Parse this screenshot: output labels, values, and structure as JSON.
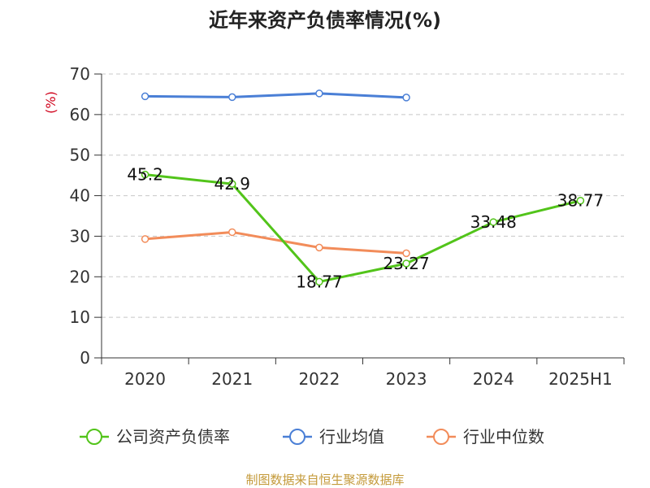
{
  "chart_data": {
    "type": "line",
    "title": "近年来资产负债率情况(%)",
    "ylabel": "(%)",
    "xlabel": "",
    "ylim": [
      0,
      70
    ],
    "yticks": [
      0,
      10,
      20,
      30,
      40,
      50,
      60,
      70
    ],
    "categories": [
      "2020",
      "2021",
      "2022",
      "2023",
      "2024",
      "2025H1"
    ],
    "grid": true,
    "legend_position": "bottom",
    "series": [
      {
        "name": "公司资产负债率",
        "color": "#52c41a",
        "values": [
          45.2,
          42.9,
          18.77,
          23.27,
          33.48,
          38.77
        ],
        "labels": [
          "45.2",
          "42.9",
          "18.77",
          "23.27",
          "33.48",
          "38.77"
        ]
      },
      {
        "name": "行业均值",
        "color": "#4a7fd6",
        "values": [
          64.5,
          64.3,
          65.2,
          64.2,
          null,
          null
        ]
      },
      {
        "name": "行业中位数",
        "color": "#f28c5a",
        "values": [
          29.3,
          31.0,
          27.2,
          25.8,
          null,
          null
        ]
      }
    ],
    "source": "制图数据来自恒生聚源数据库"
  }
}
